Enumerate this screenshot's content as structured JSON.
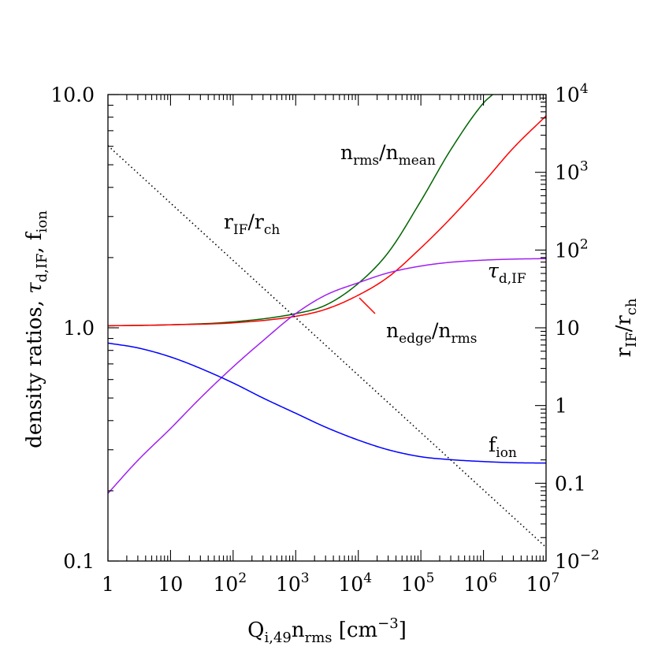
{
  "chart_data": {
    "type": "line",
    "title": "",
    "x_axis": {
      "scale": "log",
      "range": [
        1,
        10000000
      ],
      "label": {
        "base": "Q",
        "sub": "i,49",
        "mid": "n",
        "sub2": "rms",
        "unit_open": " [cm",
        "unit_sup": "−3",
        "unit_close": "]"
      },
      "ticks": [
        {
          "value": 1,
          "label": "1",
          "sup": ""
        },
        {
          "value": 10,
          "label": "10",
          "sup": ""
        },
        {
          "value": 100,
          "label": "10",
          "sup": "2"
        },
        {
          "value": 1000,
          "label": "10",
          "sup": "3"
        },
        {
          "value": 10000,
          "label": "10",
          "sup": "4"
        },
        {
          "value": 100000,
          "label": "10",
          "sup": "5"
        },
        {
          "value": 1000000,
          "label": "10",
          "sup": "6"
        },
        {
          "value": 10000000,
          "label": "10",
          "sup": "7"
        }
      ]
    },
    "y_axis_left": {
      "scale": "log",
      "range": [
        0.1,
        10
      ],
      "label": {
        "part1": "density ratios, ",
        "tau": "τ",
        "tau_sub": "d,IF",
        "part2": ", f",
        "f_sub": "ion"
      },
      "ticks": [
        {
          "value": 0.1,
          "label": "0.1"
        },
        {
          "value": 1,
          "label": "1.0"
        },
        {
          "value": 10,
          "label": "10.0"
        }
      ]
    },
    "y_axis_right": {
      "scale": "log",
      "range": [
        0.01,
        10000
      ],
      "label": {
        "base": "r",
        "sub": "IF",
        "slash": "/r",
        "sub2": "ch"
      },
      "ticks": [
        {
          "value": 0.01,
          "label": "10",
          "sup": "−2"
        },
        {
          "value": 0.1,
          "label": "0.1",
          "sup": ""
        },
        {
          "value": 1,
          "label": "1",
          "sup": ""
        },
        {
          "value": 10,
          "label": "10",
          "sup": ""
        },
        {
          "value": 100,
          "label": "10",
          "sup": "2"
        },
        {
          "value": 1000,
          "label": "10",
          "sup": "3"
        },
        {
          "value": 10000,
          "label": "10",
          "sup": "4"
        }
      ]
    },
    "grid": false,
    "series": [
      {
        "key": "n_rms_over_n_mean",
        "axis": "left",
        "color": "#006400",
        "dash": "",
        "label": {
          "base": "n",
          "sub": "rms",
          "slash": "/n",
          "sub2": "mean"
        },
        "x": [
          1,
          10,
          100,
          1000,
          3000,
          10000,
          30000,
          100000,
          300000,
          1000000,
          1400000
        ],
        "y": [
          1.02,
          1.03,
          1.06,
          1.15,
          1.25,
          1.55,
          2.1,
          3.5,
          5.8,
          9.2,
          10
        ]
      },
      {
        "key": "n_edge_over_n_rms",
        "axis": "left",
        "color": "#ff0000",
        "dash": "",
        "label": {
          "base": "n",
          "sub": "edge",
          "slash": "/n",
          "sub2": "rms"
        },
        "x": [
          1,
          10,
          100,
          1000,
          3000,
          10000,
          30000,
          100000,
          300000,
          1000000,
          3000000,
          10000000
        ],
        "y": [
          1.02,
          1.03,
          1.05,
          1.12,
          1.2,
          1.38,
          1.65,
          2.2,
          2.95,
          4.2,
          5.9,
          8.1
        ]
      },
      {
        "key": "tau_d_IF",
        "axis": "left",
        "color": "#a020f0",
        "dash": "",
        "label": {
          "base": "τ",
          "sub": "d,IF",
          "slash": "",
          "sub2": ""
        },
        "x": [
          1,
          3,
          10,
          30,
          100,
          300,
          1000,
          3000,
          10000,
          30000,
          100000,
          300000,
          1000000,
          3000000,
          10000000
        ],
        "y": [
          0.195,
          0.27,
          0.37,
          0.5,
          0.68,
          0.88,
          1.15,
          1.38,
          1.56,
          1.72,
          1.84,
          1.91,
          1.95,
          1.97,
          1.98
        ]
      },
      {
        "key": "f_ion",
        "axis": "left",
        "color": "#0000ff",
        "dash": "",
        "label": {
          "base": "f",
          "sub": "ion",
          "slash": "",
          "sub2": ""
        },
        "x": [
          1,
          3,
          10,
          30,
          100,
          300,
          1000,
          3000,
          10000,
          30000,
          100000,
          300000,
          1000000,
          3000000,
          10000000
        ],
        "y": [
          0.86,
          0.82,
          0.75,
          0.67,
          0.58,
          0.5,
          0.43,
          0.375,
          0.33,
          0.3,
          0.28,
          0.272,
          0.267,
          0.264,
          0.263
        ]
      },
      {
        "key": "r_IF_over_r_ch",
        "axis": "right",
        "color": "#000000",
        "dash": "1.5,3.5",
        "label": {
          "base": "r",
          "sub": "IF",
          "slash": "/r",
          "sub2": "ch"
        },
        "x": [
          1,
          10000000
        ],
        "y": [
          2200,
          0.015
        ]
      }
    ]
  }
}
